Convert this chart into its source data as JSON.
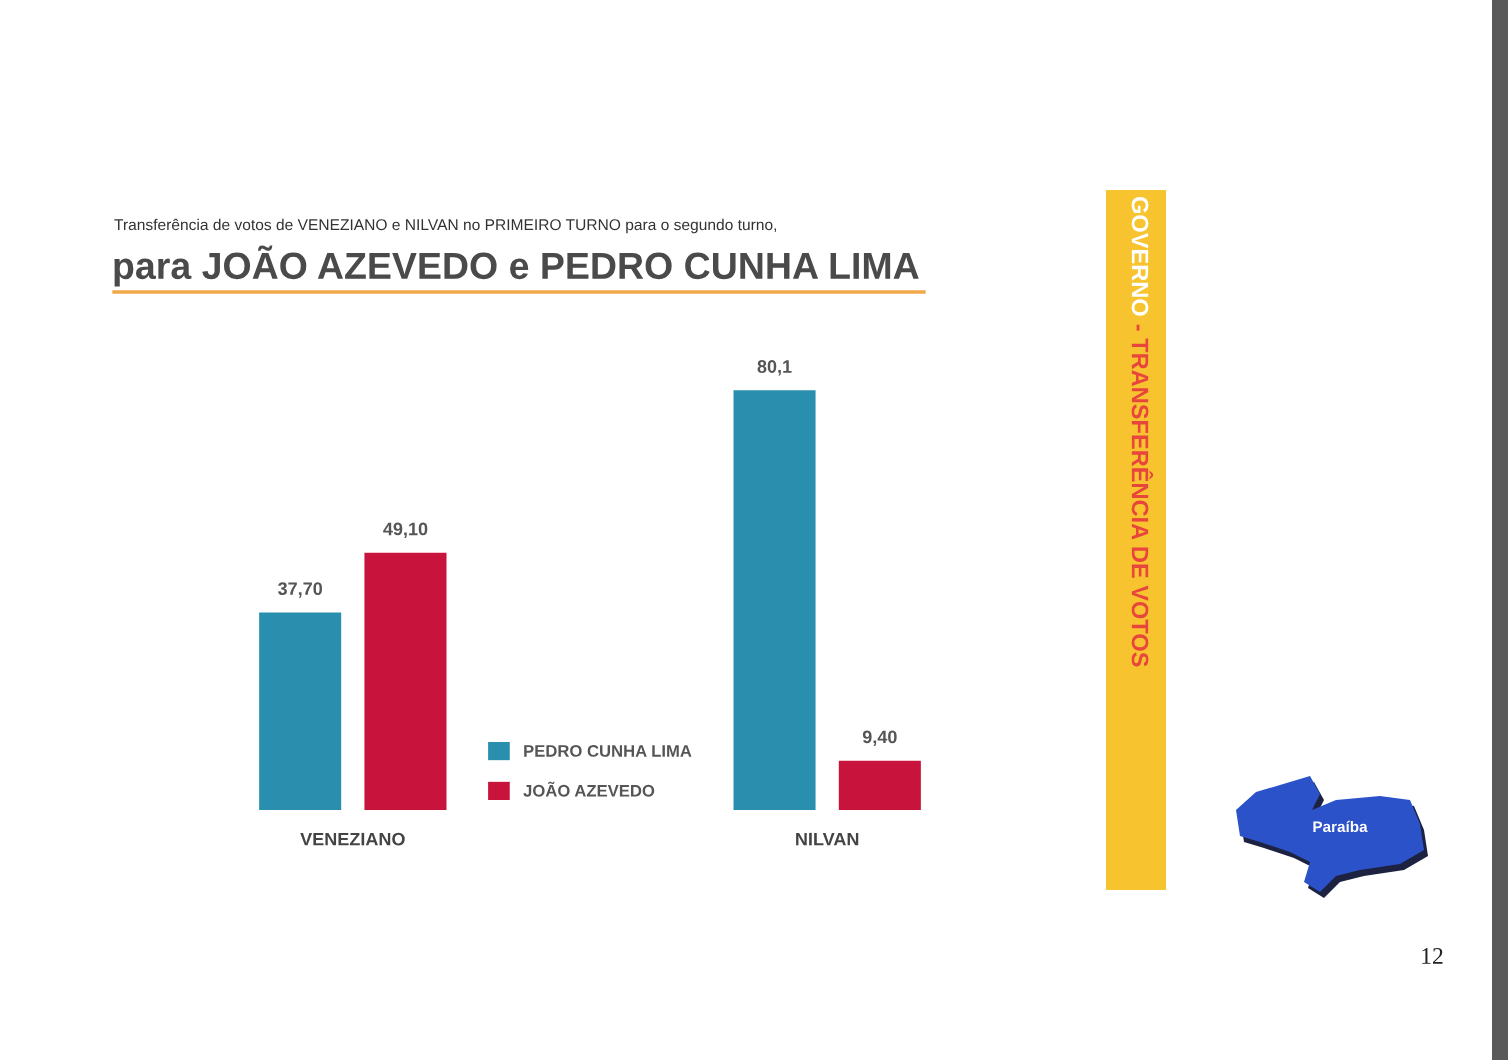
{
  "chart_data": {
    "type": "bar",
    "title": "Transferência de votos de VENEZIANO e NILVAN no PRIMEIRO TURNO para o segundo turno,",
    "subtitle": "para JOÃO AZEVEDO e PEDRO CUNHA LIMA",
    "categories": [
      "VENEZIANO",
      "NILVAN"
    ],
    "series": [
      {
        "name": "PEDRO CUNHA LIMA",
        "color": "#2a8fae",
        "values": [
          37.7,
          80.1
        ],
        "value_labels": [
          "37,70",
          "80,1"
        ]
      },
      {
        "name": "JOÃO AZEVEDO",
        "color": "#c8143c",
        "values": [
          49.1,
          9.4
        ],
        "value_labels": [
          "49,10",
          "9,40"
        ]
      }
    ],
    "legend": "bottom",
    "tick_labels": "x",
    "annotations": [
      "GOVERNO",
      "- TRANSFERÊNCIA DE VOTOS",
      "Paraíba",
      "12"
    ]
  }
}
